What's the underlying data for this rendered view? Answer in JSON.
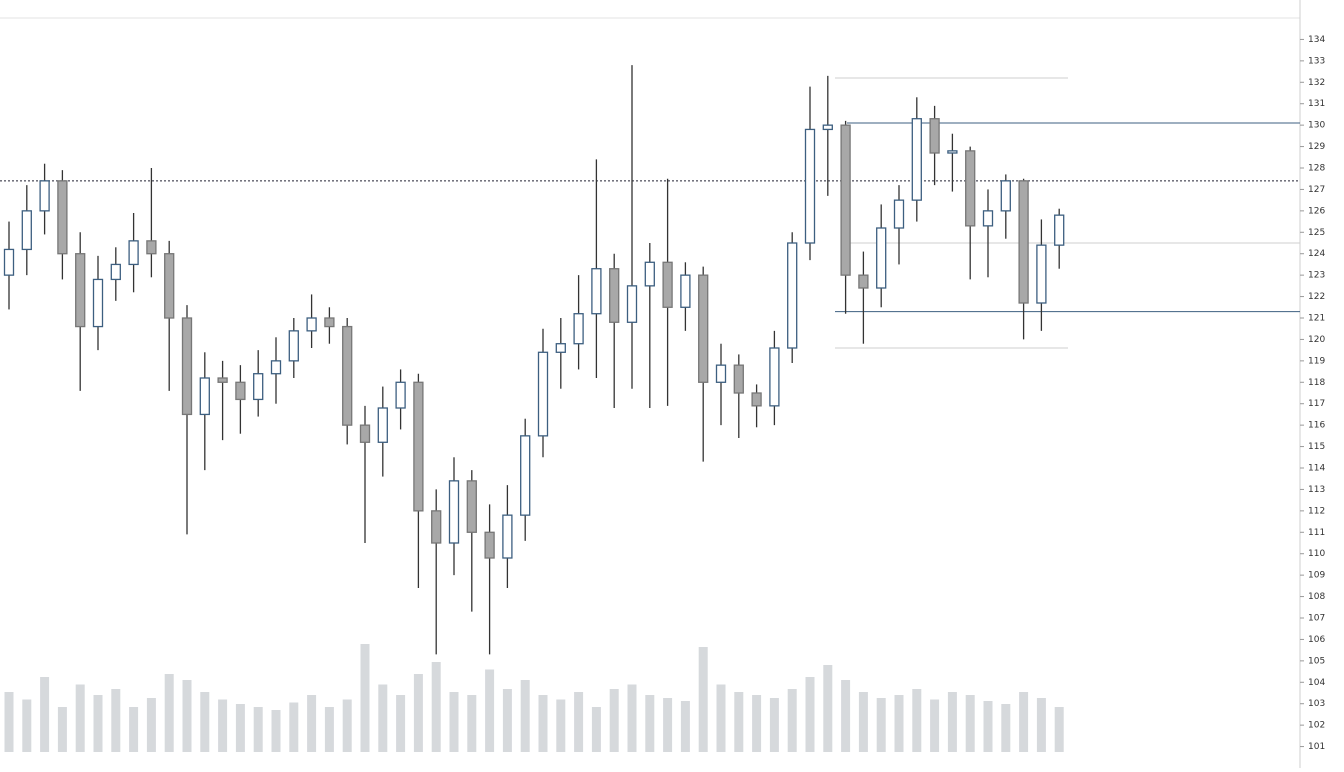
{
  "chart_data": {
    "type": "candlestick",
    "ylim": [
      100,
      135
    ],
    "yticks": [
      101,
      102,
      103,
      104,
      105,
      106,
      107,
      108,
      109,
      110,
      111,
      112,
      113,
      114,
      115,
      116,
      117,
      118,
      119,
      120,
      121,
      122,
      123,
      124,
      125,
      126,
      127,
      128,
      129,
      130,
      131,
      132,
      133,
      134
    ],
    "open": [
      123.0,
      124.2,
      126.0,
      127.4,
      124.0,
      120.6,
      122.8,
      123.5,
      124.6,
      124.0,
      121.0,
      116.5,
      118.2,
      118.0,
      117.2,
      118.4,
      119.0,
      120.4,
      121.0,
      120.6,
      116.0,
      115.2,
      116.8,
      118.0,
      112.0,
      110.5,
      113.4,
      111.0,
      109.8,
      111.8,
      115.5,
      119.4,
      119.8,
      121.2,
      123.3,
      120.8,
      122.5,
      123.6,
      121.5,
      123.0,
      118.0,
      118.8,
      117.5,
      116.9,
      119.6,
      124.5,
      129.8,
      130.0,
      123.0,
      122.4,
      125.2,
      126.5,
      130.3,
      128.7,
      128.8,
      125.3,
      126.0,
      127.4,
      121.7,
      124.4
    ],
    "high": [
      125.5,
      127.2,
      128.2,
      127.9,
      125.0,
      123.9,
      124.3,
      125.9,
      128.0,
      124.6,
      121.6,
      119.4,
      119.0,
      118.8,
      119.5,
      120.1,
      121.0,
      122.1,
      121.5,
      121.0,
      116.9,
      117.8,
      118.6,
      118.4,
      113.0,
      114.5,
      113.9,
      112.3,
      113.2,
      116.3,
      120.5,
      121.0,
      123.0,
      128.4,
      124.0,
      132.8,
      124.5,
      127.5,
      123.6,
      123.4,
      119.8,
      119.3,
      117.9,
      120.4,
      125.0,
      131.8,
      132.3,
      130.2,
      124.1,
      126.3,
      127.2,
      131.3,
      130.9,
      129.6,
      129.0,
      127.0,
      127.7,
      127.5,
      125.6,
      126.1
    ],
    "low": [
      121.4,
      123.0,
      124.9,
      122.8,
      117.6,
      119.5,
      121.8,
      122.2,
      122.9,
      117.6,
      110.9,
      113.9,
      115.3,
      115.6,
      116.4,
      117.0,
      118.2,
      119.6,
      119.8,
      115.1,
      110.5,
      113.6,
      115.8,
      108.4,
      105.3,
      109.0,
      107.3,
      105.3,
      108.4,
      110.6,
      114.5,
      117.7,
      118.6,
      118.2,
      116.8,
      117.7,
      116.8,
      116.9,
      120.4,
      114.3,
      116.0,
      115.4,
      115.9,
      116.0,
      118.9,
      123.7,
      126.7,
      121.2,
      119.8,
      121.5,
      123.5,
      125.5,
      127.2,
      126.9,
      122.8,
      122.9,
      124.7,
      120.0,
      120.4,
      123.3
    ],
    "close": [
      124.2,
      126.0,
      127.4,
      124.0,
      120.6,
      122.8,
      123.5,
      124.6,
      124.0,
      121.0,
      116.5,
      118.2,
      118.0,
      117.2,
      118.4,
      119.0,
      120.4,
      121.0,
      120.6,
      116.0,
      115.2,
      116.8,
      118.0,
      112.0,
      110.5,
      113.4,
      111.0,
      109.8,
      111.8,
      115.5,
      119.4,
      119.8,
      121.2,
      123.3,
      120.8,
      122.5,
      123.6,
      121.5,
      123.0,
      118.0,
      118.8,
      117.5,
      116.9,
      119.6,
      124.5,
      129.8,
      130.0,
      123.0,
      122.4,
      125.2,
      126.5,
      130.3,
      128.7,
      128.8,
      125.3,
      126.0,
      127.4,
      121.7,
      124.4,
      125.8
    ],
    "volume": [
      40,
      35,
      50,
      30,
      45,
      38,
      42,
      30,
      36,
      52,
      48,
      40,
      35,
      32,
      30,
      28,
      33,
      38,
      30,
      35,
      72,
      45,
      38,
      52,
      60,
      40,
      38,
      55,
      42,
      48,
      38,
      35,
      40,
      30,
      42,
      45,
      38,
      36,
      34,
      70,
      45,
      40,
      38,
      36,
      42,
      50,
      58,
      48,
      40,
      36,
      38,
      42,
      35,
      40,
      38,
      34,
      32,
      40,
      36,
      30
    ],
    "vlim": [
      0,
      100
    ],
    "up_color": "#3d5f80",
    "down_color": "#a8a8a8",
    "volume_color": "#d6d9dc",
    "levels": [
      {
        "value": 127.4,
        "style": "dotted"
      },
      {
        "value": 130.1,
        "style": "solid"
      },
      {
        "value": 121.3,
        "style": "solid"
      },
      {
        "value": 132.2,
        "style": "faint"
      },
      {
        "value": 119.6,
        "style": "faint"
      },
      {
        "value": 124.5,
        "style": "faint"
      }
    ]
  }
}
